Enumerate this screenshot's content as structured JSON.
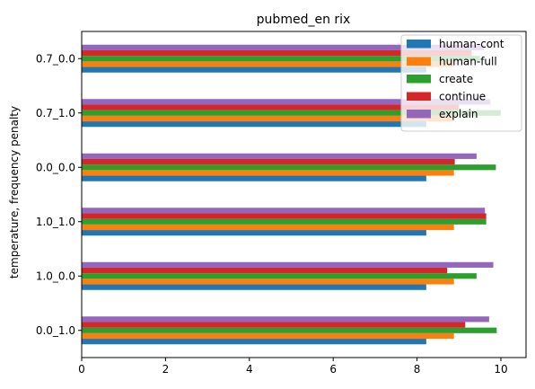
{
  "chart_data": {
    "type": "bar",
    "orientation": "horizontal",
    "title": "pubmed_en rix",
    "xlabel": "",
    "ylabel": "temperature, frequency penalty",
    "categories": [
      "0.0_1.0",
      "1.0_0.0",
      "1.0_1.0",
      "0.0_0.0",
      "0.7_1.0",
      "0.7_0.0"
    ],
    "xlim": [
      0,
      10.6
    ],
    "xticks": [
      0,
      2,
      4,
      6,
      8,
      10
    ],
    "grid": false,
    "legend_position": "top-right",
    "series": [
      {
        "name": "human-cont",
        "color": "#1f77b4",
        "values": [
          8.22,
          8.22,
          8.22,
          8.22,
          8.22,
          8.22
        ]
      },
      {
        "name": "human-full",
        "color": "#ff7f0e",
        "values": [
          8.88,
          8.88,
          8.88,
          8.88,
          8.88,
          8.88
        ]
      },
      {
        "name": "create",
        "color": "#2ca02c",
        "values": [
          9.9,
          9.42,
          9.65,
          9.88,
          10.0,
          9.5
        ]
      },
      {
        "name": "continue",
        "color": "#d62728",
        "values": [
          9.15,
          8.72,
          9.65,
          8.9,
          9.0,
          9.3
        ]
      },
      {
        "name": "explain",
        "color": "#9467bd",
        "values": [
          9.72,
          9.82,
          9.62,
          9.42,
          9.75,
          9.6
        ]
      }
    ]
  }
}
